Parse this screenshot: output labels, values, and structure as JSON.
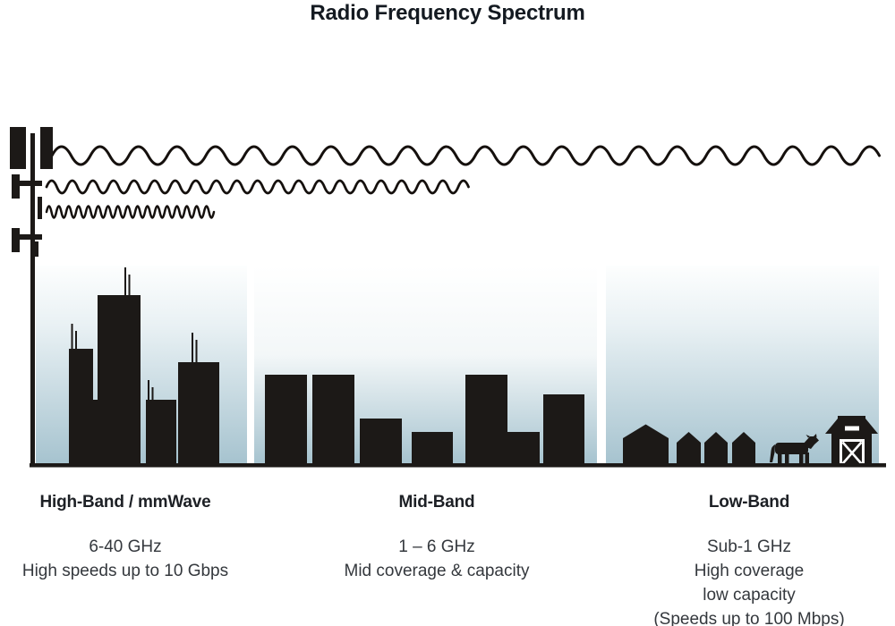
{
  "title": "Radio Frequency Spectrum",
  "bands": [
    {
      "name": "High-Band / mmWave",
      "details": [
        "6-40 GHz",
        "High speeds up to 10 Gbps"
      ],
      "scene": "city-skyline",
      "wave": "short-wavelength"
    },
    {
      "name": "Mid-Band",
      "details": [
        "1 – 6 GHz",
        "Mid coverage & capacity"
      ],
      "scene": "suburban-buildings",
      "wave": "medium-wavelength"
    },
    {
      "name": "Low-Band",
      "details": [
        "Sub-1 GHz",
        "High coverage",
        "low capacity",
        "(Speeds up to 100 Mbps)"
      ],
      "scene": "rural-houses-barn-cow",
      "wave": "long-wavelength"
    }
  ],
  "colors": {
    "ink": "#1c1917",
    "wave_ink": "#15100d",
    "sky_bottom": "#a6c3cf",
    "title_text": "#141a21",
    "body_text": "#34383d",
    "background": "#ffffff"
  }
}
